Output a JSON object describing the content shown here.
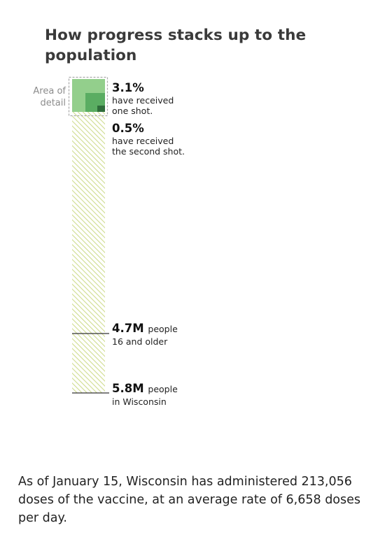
{
  "title": "How progress stacks up to the population",
  "area_of_detail_label": "Area of detail",
  "labels": {
    "one_shot": {
      "value": "3.1%",
      "text_line1": "have received",
      "text_line2": "one shot."
    },
    "second_shot": {
      "value": "0.5%",
      "text_line1": "have received",
      "text_line2": "the second shot."
    },
    "sixteen_older": {
      "value": "4.7M",
      "text_inline": "people",
      "text_line2": "16 and older"
    },
    "wisconsin": {
      "value": "5.8M",
      "text_inline": "people",
      "text_line2": "in Wisconsin"
    }
  },
  "footnote": "As of January 15, Wisconsin has administered 213,056 doses of the vaccine, at an average rate of 6,658 doses per day.",
  "colors": {
    "hatch": "#dfe9b0",
    "one_shot": "#8fcc8a",
    "second_shot": "#4fa65c",
    "dark_green": "#2e6b3a",
    "markers": "#333333"
  },
  "chart_data": {
    "type": "bar",
    "title": "How progress stacks up to the population",
    "series": [
      {
        "name": "Wisconsin population",
        "value": 5.8,
        "unit": "M people"
      },
      {
        "name": "People 16 and older",
        "value": 4.7,
        "unit": "M people"
      },
      {
        "name": "Received one shot",
        "value": 3.1,
        "unit": "%"
      },
      {
        "name": "Received the second shot",
        "value": 0.5,
        "unit": "%"
      }
    ]
  }
}
